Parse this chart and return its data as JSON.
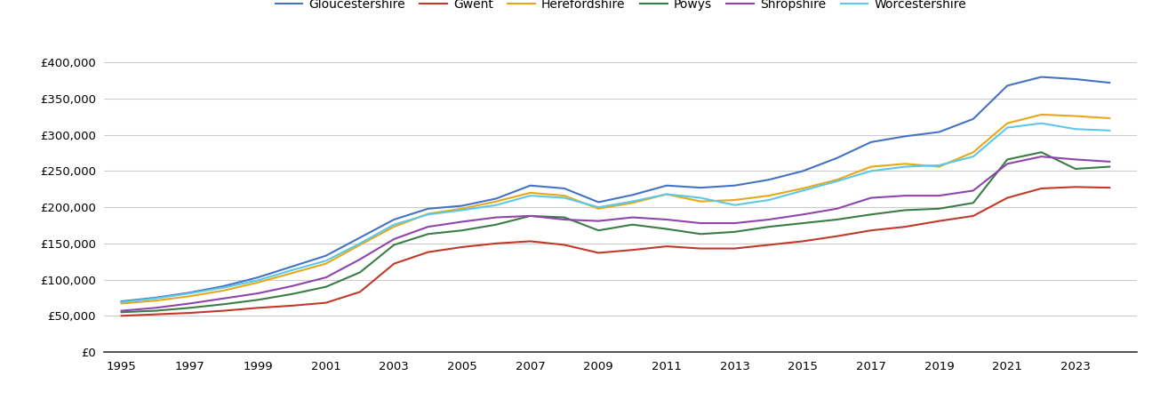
{
  "years": [
    1995,
    1996,
    1997,
    1998,
    1999,
    2000,
    2001,
    2002,
    2003,
    2004,
    2005,
    2006,
    2007,
    2008,
    2009,
    2010,
    2011,
    2012,
    2013,
    2014,
    2015,
    2016,
    2017,
    2018,
    2019,
    2020,
    2021,
    2022,
    2023,
    2024
  ],
  "series": {
    "Gloucestershire": [
      70000,
      75000,
      82000,
      91000,
      103000,
      118000,
      133000,
      158000,
      183000,
      198000,
      202000,
      212000,
      230000,
      226000,
      207000,
      217000,
      230000,
      227000,
      230000,
      238000,
      250000,
      268000,
      290000,
      298000,
      304000,
      322000,
      368000,
      380000,
      377000,
      372000
    ],
    "Gwent": [
      50000,
      52000,
      54000,
      57000,
      61000,
      64000,
      68000,
      83000,
      122000,
      138000,
      145000,
      150000,
      153000,
      148000,
      137000,
      141000,
      146000,
      143000,
      143000,
      148000,
      153000,
      160000,
      168000,
      173000,
      181000,
      188000,
      213000,
      226000,
      228000,
      227000
    ],
    "Herefordshire": [
      67000,
      71000,
      77000,
      85000,
      96000,
      109000,
      122000,
      148000,
      173000,
      191000,
      198000,
      208000,
      220000,
      216000,
      198000,
      206000,
      218000,
      208000,
      210000,
      216000,
      226000,
      238000,
      256000,
      260000,
      256000,
      276000,
      316000,
      328000,
      326000,
      323000
    ],
    "Powys": [
      55000,
      57000,
      61000,
      66000,
      72000,
      80000,
      90000,
      110000,
      148000,
      163000,
      168000,
      176000,
      188000,
      186000,
      168000,
      176000,
      170000,
      163000,
      166000,
      173000,
      178000,
      183000,
      190000,
      196000,
      198000,
      206000,
      266000,
      276000,
      253000,
      256000
    ],
    "Shropshire": [
      57000,
      61000,
      67000,
      74000,
      81000,
      91000,
      103000,
      128000,
      156000,
      173000,
      180000,
      186000,
      188000,
      183000,
      181000,
      186000,
      183000,
      178000,
      178000,
      183000,
      190000,
      198000,
      213000,
      216000,
      216000,
      223000,
      260000,
      270000,
      266000,
      263000
    ],
    "Worcestershire": [
      69000,
      74000,
      81000,
      89000,
      99000,
      113000,
      126000,
      150000,
      176000,
      190000,
      196000,
      203000,
      216000,
      213000,
      200000,
      208000,
      218000,
      213000,
      203000,
      210000,
      223000,
      236000,
      250000,
      256000,
      258000,
      270000,
      310000,
      316000,
      308000,
      306000
    ]
  },
  "colors": {
    "Gloucestershire": "#4472c4",
    "Gwent": "#c0392b",
    "Herefordshire": "#e6a817",
    "Powys": "#3a7d44",
    "Shropshire": "#8e44ad",
    "Worcestershire": "#5bc8e8"
  },
  "ylim": [
    0,
    420000
  ],
  "yticks": [
    0,
    50000,
    100000,
    150000,
    200000,
    250000,
    300000,
    350000,
    400000
  ],
  "background_color": "#ffffff",
  "grid_color": "#cccccc",
  "legend_order": [
    "Gloucestershire",
    "Gwent",
    "Herefordshire",
    "Powys",
    "Shropshire",
    "Worcestershire"
  ]
}
